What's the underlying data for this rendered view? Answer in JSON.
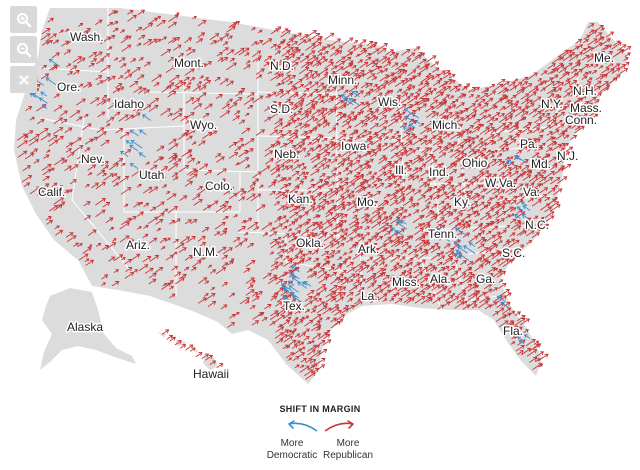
{
  "controls": {
    "zoom_in_icon": "magnifier-plus-icon",
    "zoom_out_icon": "magnifier-minus-icon",
    "close_icon": "close-x-icon"
  },
  "colors": {
    "land": "#dcdcdc",
    "background": "#ffffff",
    "border": "#ffffff",
    "republican": "#c8373a",
    "democratic": "#3a8fcf"
  },
  "state_labels": {
    "wash": "Wash.",
    "ore": "Ore.",
    "calif": "Calif.",
    "idaho": "Idaho",
    "nev": "Nev.",
    "utah": "Utah",
    "ariz": "Ariz.",
    "mont": "Mont.",
    "wyo": "Wyo.",
    "colo": "Colo.",
    "nm": "N.M.",
    "nd": "N.D.",
    "sd": "S.D.",
    "neb": "Neb.",
    "kan": "Kan.",
    "okla": "Okla.",
    "tex": "Tex.",
    "minn": "Minn.",
    "iowa": "Iowa",
    "mo": "Mo.",
    "ark": "Ark.",
    "la": "La.",
    "wis": "Wis.",
    "ill": "Ill.",
    "mich": "Mich.",
    "ind": "Ind.",
    "ohio": "Ohio",
    "ky": "Ky.",
    "tenn": "Tenn.",
    "miss": "Miss.",
    "ala": "Ala.",
    "ga": "Ga.",
    "fla": "Fla.",
    "sc": "S.C.",
    "nc": "N.C.",
    "va": "Va.",
    "wva": "W.Va.",
    "pa": "Pa.",
    "ny": "N.Y.",
    "md": "Md.",
    "nj": "N.J.",
    "conn": "Conn.",
    "mass": "Mass.",
    "nh": "N.H.",
    "me": "Me.",
    "alaska": "Alaska",
    "hawaii": "Hawaii"
  },
  "legend": {
    "title": "SHIFT IN MARGIN",
    "democratic_label": "More\nDemocratic",
    "republican_label": "More\nRepublican"
  }
}
